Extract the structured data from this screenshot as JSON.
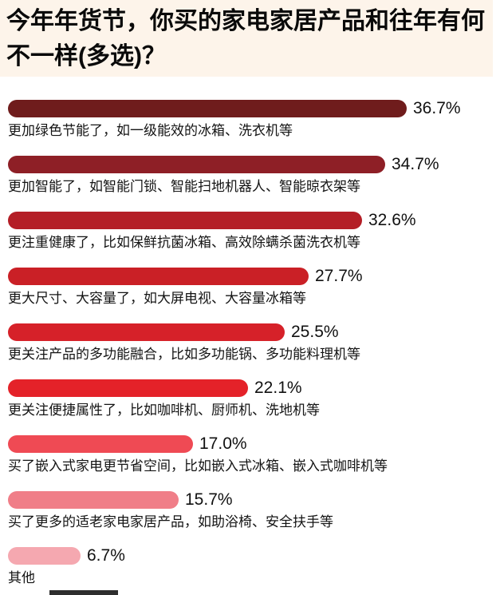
{
  "title": {
    "text": "今年年货节，你买的家电家居产品和往年有何不一样(多选)？"
  },
  "chart_data": {
    "type": "bar",
    "orientation": "horizontal",
    "title": "今年年货节，你买的家电家居产品和往年有何不一样(多选)？",
    "value_unit": "%",
    "axis_max_for_scale": 36.7,
    "grid": false,
    "legend": false,
    "categories": [
      "更加绿色节能了，如一级能效的冰箱、洗衣机等",
      "更加智能了，如智能门锁、智能扫地机器人、智能晾衣架等",
      "更注重健康了，比如保鲜抗菌冰箱、高效除螨杀菌洗衣机等",
      "更大尺寸、大容量了，如大屏电视、大容量冰箱等",
      "更关注产品的多功能融合，比如多功能锅、多功能料理机等",
      "更关注便捷属性了，比如咖啡机、厨师机、洗地机等",
      "买了嵌入式家电更节省空间，比如嵌入式冰箱、嵌入式咖啡机等",
      "买了更多的适老家电家居产品，如助浴椅、安全扶手等",
      "其他"
    ],
    "values": [
      36.7,
      34.7,
      32.6,
      27.7,
      25.5,
      22.1,
      17.0,
      15.7,
      6.7
    ],
    "value_labels": [
      "36.7%",
      "34.7%",
      "32.6%",
      "27.7%",
      "25.5%",
      "22.1%",
      "17.0%",
      "15.7%",
      "6.7%"
    ],
    "bar_colors": [
      "#6f1c1c",
      "#8e1f26",
      "#b41e26",
      "#ca2026",
      "#d62129",
      "#e42229",
      "#ef4a54",
      "#f07e88",
      "#f5a8b0"
    ]
  },
  "colors": {
    "title_background": "#fdf4ea",
    "page_background": "#ffffff",
    "text": "#000000"
  }
}
